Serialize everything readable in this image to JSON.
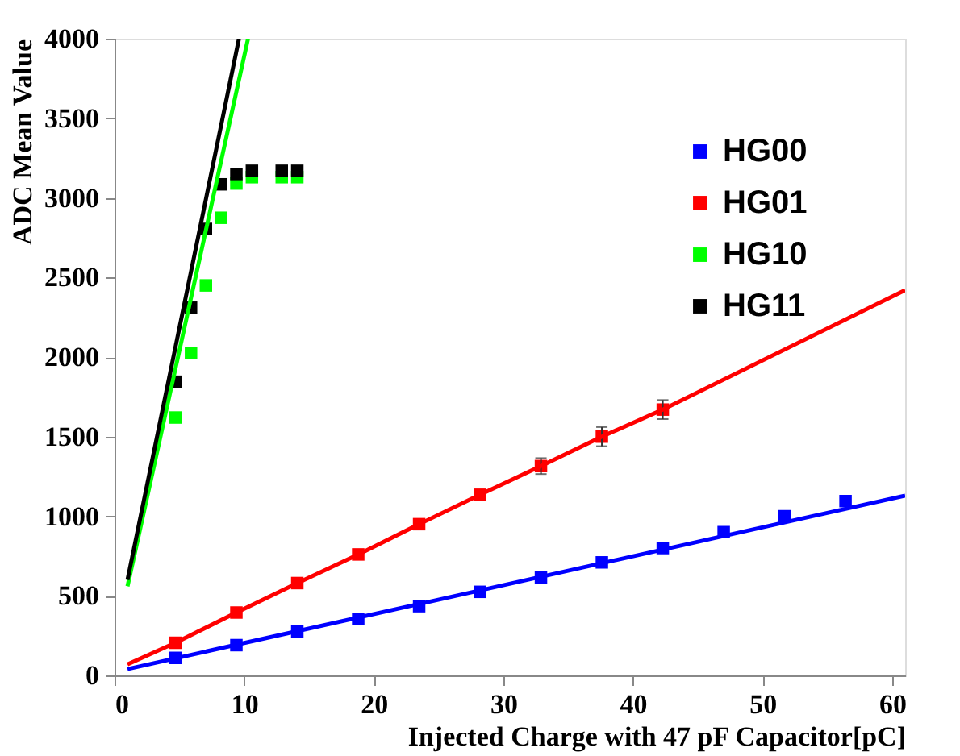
{
  "chart_data": {
    "type": "scatter",
    "xlabel": "Injected Charge with 47 pF Capacitor[pC]",
    "ylabel": "ADC Mean Value",
    "xlim": [
      0,
      61
    ],
    "ylim": [
      0,
      4000
    ],
    "xticks": [
      0,
      10,
      20,
      30,
      40,
      50,
      60
    ],
    "yticks": [
      0,
      500,
      1000,
      1500,
      2000,
      2500,
      3000,
      3500,
      4000
    ],
    "grid": false,
    "legend": "top right",
    "marker": "square",
    "series": [
      {
        "name": "HG00",
        "color": "#0000ff",
        "x": [
          4.7,
          9.4,
          14.1,
          18.8,
          23.5,
          28.2,
          32.9,
          37.6,
          42.3,
          47,
          51.7,
          56.4
        ],
        "values": [
          110,
          190,
          275,
          355,
          435,
          525,
          615,
          710,
          800,
          900,
          1000,
          1095
        ]
      },
      {
        "name": "HG01",
        "color": "#ff0000",
        "x": [
          4.7,
          9.4,
          14.1,
          18.8,
          23.5,
          28.2,
          32.9,
          37.6,
          42.3
        ],
        "values": [
          205,
          395,
          580,
          760,
          950,
          1135,
          1315,
          1500,
          1670
        ],
        "errors": [
          null,
          null,
          null,
          null,
          null,
          null,
          50,
          60,
          60
        ]
      },
      {
        "name": "HG10",
        "color": "#00ff00",
        "x": [
          4.7,
          5.9,
          7.05,
          8.2,
          9.4,
          10.6,
          12.9,
          14.1
        ],
        "values": [
          1620,
          2025,
          2450,
          2875,
          3090,
          3130,
          3130,
          3130
        ]
      },
      {
        "name": "HG11",
        "color": "#000000",
        "x": [
          4.7,
          5.9,
          7.05,
          8.2,
          9.4,
          10.6,
          12.9,
          14.1
        ],
        "values": [
          1845,
          2310,
          2805,
          3085,
          3150,
          3170,
          3170,
          3170
        ]
      },
      {
        "type": "line",
        "color": "#0000ff",
        "marker": "none",
        "line_style": "solid",
        "x": [
          1,
          61
        ],
        "values": [
          40,
          1130
        ]
      },
      {
        "type": "line",
        "color": "#ff0000",
        "marker": "none",
        "line_style": "solid",
        "x": [
          1,
          4.7,
          9.4,
          14.1,
          18.8,
          23.5,
          28.2,
          32.9,
          37.6,
          42.3,
          61
        ],
        "values": [
          70,
          205,
          395,
          580,
          760,
          950,
          1135,
          1315,
          1500,
          1670,
          2420
        ]
      },
      {
        "type": "line",
        "color": "#00ff00",
        "marker": "none",
        "line_style": "solid",
        "x": [
          1,
          10.3
        ],
        "values": [
          560,
          4000
        ]
      },
      {
        "type": "line",
        "color": "#000000",
        "marker": "none",
        "line_style": "solid",
        "x": [
          1,
          9.6
        ],
        "values": [
          600,
          4000
        ]
      }
    ]
  }
}
